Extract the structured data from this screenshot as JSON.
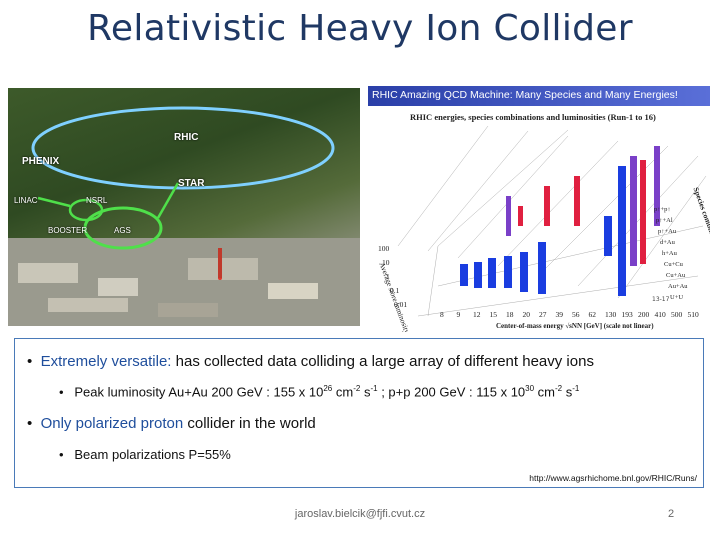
{
  "slide": {
    "title": "Relativistic Heavy Ion Collider",
    "footer_email": "jaroslav.bielcik@fjfi.cvut.cz",
    "page_number": "2"
  },
  "photo": {
    "labels": {
      "rhic": "RHIC",
      "phenix": "PHENIX",
      "star": "STAR",
      "linac": "LINAC",
      "nsrl": "NSRL",
      "booster": "BOOSTER",
      "ags": "AGS"
    }
  },
  "chart": {
    "header": "RHIC Amazing QCD Machine: Many Species and Many Energies!",
    "subtitle": "RHIC energies, species combinations and luminosities (Run-1 to 16)",
    "x_axis_label": "Center-of-mass energy √sNN [GeV] (scale not linear)",
    "y_axis_label": "Average store luminosity Lint (10^26 cm^-2 s^-1)",
    "species_label": "Species combination",
    "run_note": "13-17",
    "x_ticks": [
      "8",
      "9",
      "12",
      "15",
      "18",
      "20",
      "27",
      "39",
      "56",
      "62",
      "130",
      "193",
      "200",
      "410",
      "500",
      "510"
    ],
    "y_ticks": [
      "100",
      "10",
      "1",
      "0.1",
      "0.01"
    ],
    "species": [
      "p↑+p↑",
      "p↑+Al",
      "p↑+Au",
      "d+Au",
      "h+Au",
      "Cu+Cu",
      "Cu+Au",
      "Au+Au",
      "U+U"
    ]
  },
  "bullets": [
    {
      "prefix": "Extremely versatile:",
      "text": " has collected data colliding a large array of different heavy ions"
    },
    {
      "text_a": "Peak luminosity  Au+Au 200 GeV : 155 x 10",
      "exp_a": "26",
      "text_b": " cm",
      "exp_b": "-2",
      "text_c": " s",
      "exp_c": "-1",
      "text_d": " ; p+p 200 GeV : 115 x 10",
      "exp_d": "30",
      "text_e": " cm",
      "exp_e": "-2",
      "text_f": " s",
      "exp_f": "-1"
    },
    {
      "prefix": "Only polarized proton",
      "text": " collider in the world"
    },
    {
      "text": "Beam polarizations P=55%"
    }
  ],
  "source_url": "http://www.agsrhichome.bnl.gov/RHIC/Runs/",
  "colors": {
    "title": "#1f3864",
    "highlight": "#1f4e9c",
    "bar_blue": "#1a3de0",
    "bar_red": "#e02040",
    "bar_purple": "#7a40c8"
  }
}
